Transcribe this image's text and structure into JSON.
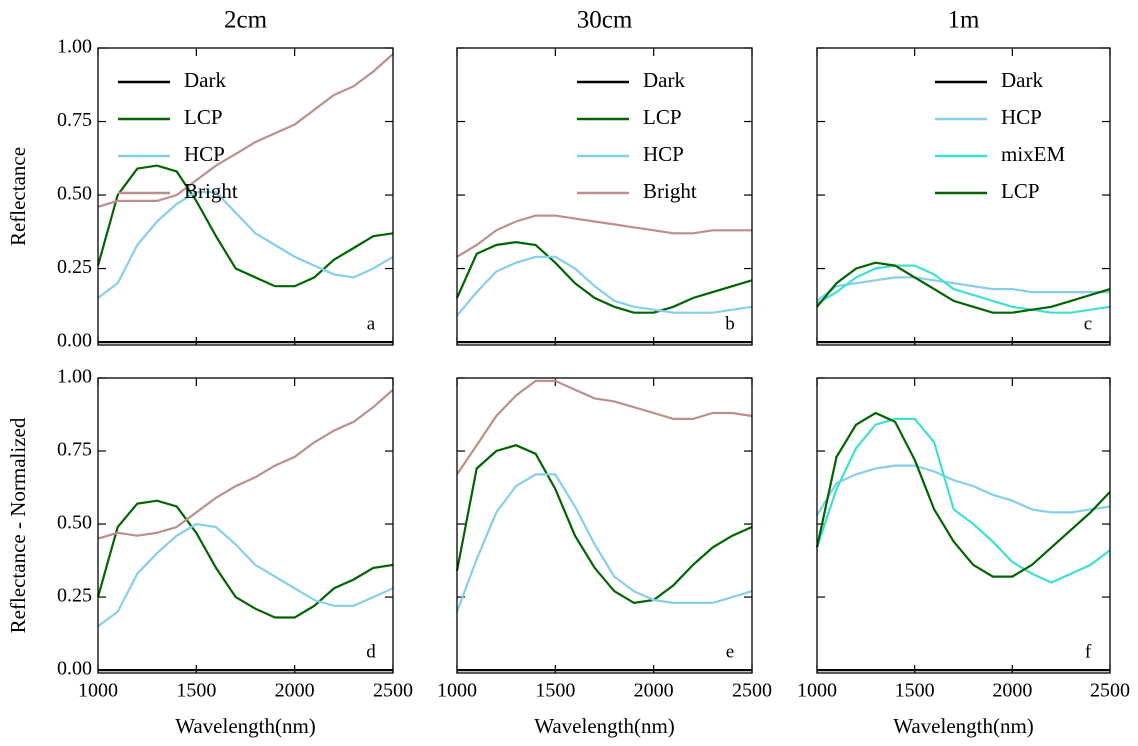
{
  "chart_data": [
    {
      "type": "line",
      "title": "2cm",
      "ylabel": "Reflectance",
      "annotation": "a",
      "x": [
        1000,
        1100,
        1200,
        1300,
        1400,
        1500,
        1600,
        1700,
        1800,
        1900,
        2000,
        2100,
        2200,
        2300,
        2400,
        2500
      ],
      "xlim": [
        1000,
        2500
      ],
      "xticks": [
        1000,
        1500,
        2000,
        2500
      ],
      "xtick_labels": false,
      "ylim": [
        -0.01,
        1.0
      ],
      "yticks": [
        {
          "value": 0,
          "label": "0.00"
        },
        {
          "value": 0.25,
          "label": "0.25"
        },
        {
          "value": 0.5,
          "label": "0.50"
        },
        {
          "value": 0.75,
          "label": "0.75"
        },
        {
          "value": 1,
          "label": "1.00"
        }
      ],
      "ytick_labels": true,
      "legend": true,
      "legend_loc": "upper left",
      "series": [
        {
          "name": "Dark",
          "color": "#000000",
          "values": [
            0,
            0,
            0,
            0,
            0,
            0,
            0,
            0,
            0,
            0,
            0,
            0,
            0,
            0,
            0,
            0
          ]
        },
        {
          "name": "LCP",
          "color": "#006400",
          "values": [
            0.26,
            0.5,
            0.59,
            0.6,
            0.58,
            0.48,
            0.36,
            0.25,
            0.22,
            0.19,
            0.19,
            0.22,
            0.28,
            0.32,
            0.36,
            0.37
          ]
        },
        {
          "name": "HCP",
          "color": "#87ceeb",
          "values": [
            0.15,
            0.2,
            0.33,
            0.41,
            0.47,
            0.51,
            0.51,
            0.44,
            0.37,
            0.33,
            0.29,
            0.26,
            0.23,
            0.22,
            0.25,
            0.29
          ]
        },
        {
          "name": "Bright",
          "color": "#bc8f8f",
          "values": [
            0.46,
            0.48,
            0.48,
            0.48,
            0.5,
            0.55,
            0.6,
            0.64,
            0.68,
            0.71,
            0.74,
            0.79,
            0.84,
            0.87,
            0.92,
            0.98
          ]
        }
      ]
    },
    {
      "type": "line",
      "title": "30cm",
      "annotation": "b",
      "x": [
        1000,
        1100,
        1200,
        1300,
        1400,
        1500,
        1600,
        1700,
        1800,
        1900,
        2000,
        2100,
        2200,
        2300,
        2400,
        2500
      ],
      "xlim": [
        1000,
        2500
      ],
      "xticks": [
        1000,
        1500,
        2000,
        2500
      ],
      "xtick_labels": false,
      "ylim": [
        -0.01,
        1.0
      ],
      "yticks": [
        0,
        0.25,
        0.5,
        0.75,
        1
      ],
      "ytick_labels": false,
      "legend": true,
      "legend_loc": "upper right",
      "series": [
        {
          "name": "Dark",
          "color": "#000000",
          "values": [
            0,
            0,
            0,
            0,
            0,
            0,
            0,
            0,
            0,
            0,
            0,
            0,
            0,
            0,
            0,
            0
          ]
        },
        {
          "name": "LCP",
          "color": "#006400",
          "values": [
            0.15,
            0.3,
            0.33,
            0.34,
            0.33,
            0.27,
            0.2,
            0.15,
            0.12,
            0.1,
            0.1,
            0.12,
            0.15,
            0.17,
            0.19,
            0.21
          ]
        },
        {
          "name": "HCP",
          "color": "#87ceeb",
          "values": [
            0.09,
            0.17,
            0.24,
            0.27,
            0.29,
            0.29,
            0.25,
            0.19,
            0.14,
            0.12,
            0.11,
            0.1,
            0.1,
            0.1,
            0.11,
            0.12
          ]
        },
        {
          "name": "Bright",
          "color": "#bc8f8f",
          "values": [
            0.29,
            0.33,
            0.38,
            0.41,
            0.43,
            0.43,
            0.42,
            0.41,
            0.4,
            0.39,
            0.38,
            0.37,
            0.37,
            0.38,
            0.38,
            0.38
          ]
        }
      ]
    },
    {
      "type": "line",
      "title": "1m",
      "annotation": "c",
      "x": [
        1000,
        1100,
        1200,
        1300,
        1400,
        1500,
        1600,
        1700,
        1800,
        1900,
        2000,
        2100,
        2200,
        2300,
        2400,
        2500
      ],
      "xlim": [
        1000,
        2500
      ],
      "xticks": [
        1000,
        1500,
        2000,
        2500
      ],
      "xtick_labels": false,
      "ylim": [
        -0.01,
        1.0
      ],
      "yticks": [
        0,
        0.25,
        0.5,
        0.75,
        1
      ],
      "ytick_labels": false,
      "legend": true,
      "legend_loc": "upper right",
      "series": [
        {
          "name": "Dark",
          "color": "#000000",
          "values": [
            0,
            0,
            0,
            0,
            0,
            0,
            0,
            0,
            0,
            0,
            0,
            0,
            0,
            0,
            0,
            0
          ]
        },
        {
          "name": "HCP",
          "color": "#87ceeb",
          "values": [
            0.14,
            0.19,
            0.2,
            0.21,
            0.22,
            0.22,
            0.21,
            0.2,
            0.19,
            0.18,
            0.18,
            0.17,
            0.17,
            0.17,
            0.17,
            0.17
          ]
        },
        {
          "name": "mixEM",
          "color": "#40e0d0",
          "values": [
            0.13,
            0.17,
            0.22,
            0.25,
            0.26,
            0.26,
            0.23,
            0.18,
            0.16,
            0.14,
            0.12,
            0.11,
            0.1,
            0.1,
            0.11,
            0.12
          ]
        },
        {
          "name": "LCP",
          "color": "#006400",
          "values": [
            0.12,
            0.2,
            0.25,
            0.27,
            0.26,
            0.22,
            0.18,
            0.14,
            0.12,
            0.1,
            0.1,
            0.11,
            0.12,
            0.14,
            0.16,
            0.18
          ]
        }
      ]
    },
    {
      "type": "line",
      "ylabel": "Reflectance - Normalized",
      "xlabel": "Wavelength(nm)",
      "annotation": "d",
      "x": [
        1000,
        1100,
        1200,
        1300,
        1400,
        1500,
        1600,
        1700,
        1800,
        1900,
        2000,
        2100,
        2200,
        2300,
        2400,
        2500
      ],
      "xlim": [
        1000,
        2500
      ],
      "xticks": [
        1000,
        1500,
        2000,
        2500
      ],
      "xtick_labels": true,
      "ylim": [
        -0.01,
        1.0
      ],
      "yticks": [
        {
          "value": 0,
          "label": "0.00"
        },
        {
          "value": 0.25,
          "label": "0.25"
        },
        {
          "value": 0.5,
          "label": "0.50"
        },
        {
          "value": 0.75,
          "label": "0.75"
        },
        {
          "value": 1,
          "label": "1.00"
        }
      ],
      "ytick_labels": true,
      "legend": false,
      "series": [
        {
          "name": "Dark",
          "color": "#000000",
          "values": [
            0,
            0,
            0,
            0,
            0,
            0,
            0,
            0,
            0,
            0,
            0,
            0,
            0,
            0,
            0,
            0
          ]
        },
        {
          "name": "LCP",
          "color": "#006400",
          "values": [
            0.25,
            0.49,
            0.57,
            0.58,
            0.56,
            0.47,
            0.35,
            0.25,
            0.21,
            0.18,
            0.18,
            0.22,
            0.28,
            0.31,
            0.35,
            0.36
          ]
        },
        {
          "name": "HCP",
          "color": "#87ceeb",
          "values": [
            0.15,
            0.2,
            0.33,
            0.4,
            0.46,
            0.5,
            0.49,
            0.43,
            0.36,
            0.32,
            0.28,
            0.24,
            0.22,
            0.22,
            0.25,
            0.28
          ]
        },
        {
          "name": "Bright",
          "color": "#bc8f8f",
          "values": [
            0.45,
            0.47,
            0.46,
            0.47,
            0.49,
            0.54,
            0.59,
            0.63,
            0.66,
            0.7,
            0.73,
            0.78,
            0.82,
            0.85,
            0.9,
            0.96
          ]
        }
      ]
    },
    {
      "type": "line",
      "xlabel": "Wavelength(nm)",
      "annotation": "e",
      "x": [
        1000,
        1100,
        1200,
        1300,
        1400,
        1500,
        1600,
        1700,
        1800,
        1900,
        2000,
        2100,
        2200,
        2300,
        2400,
        2500
      ],
      "xlim": [
        1000,
        2500
      ],
      "xticks": [
        1000,
        1500,
        2000,
        2500
      ],
      "xtick_labels": true,
      "ylim": [
        -0.01,
        1.0
      ],
      "yticks": [
        0,
        0.25,
        0.5,
        0.75,
        1
      ],
      "ytick_labels": false,
      "legend": false,
      "series": [
        {
          "name": "Dark",
          "color": "#000000",
          "values": [
            0,
            0,
            0,
            0,
            0,
            0,
            0,
            0,
            0,
            0,
            0,
            0,
            0,
            0,
            0,
            0
          ]
        },
        {
          "name": "LCP",
          "color": "#006400",
          "values": [
            0.34,
            0.69,
            0.75,
            0.77,
            0.74,
            0.62,
            0.46,
            0.35,
            0.27,
            0.23,
            0.24,
            0.29,
            0.36,
            0.42,
            0.46,
            0.49
          ]
        },
        {
          "name": "HCP",
          "color": "#87ceeb",
          "values": [
            0.2,
            0.38,
            0.54,
            0.63,
            0.67,
            0.67,
            0.56,
            0.43,
            0.32,
            0.27,
            0.24,
            0.23,
            0.23,
            0.23,
            0.25,
            0.27
          ]
        },
        {
          "name": "Bright",
          "color": "#bc8f8f",
          "values": [
            0.67,
            0.77,
            0.87,
            0.94,
            0.99,
            0.99,
            0.96,
            0.93,
            0.92,
            0.9,
            0.88,
            0.86,
            0.86,
            0.88,
            0.88,
            0.87
          ]
        }
      ]
    },
    {
      "type": "line",
      "xlabel": "Wavelength(nm)",
      "annotation": "f",
      "x": [
        1000,
        1100,
        1200,
        1300,
        1400,
        1500,
        1600,
        1700,
        1800,
        1900,
        2000,
        2100,
        2200,
        2300,
        2400,
        2500
      ],
      "xlim": [
        1000,
        2500
      ],
      "xticks": [
        1000,
        1500,
        2000,
        2500
      ],
      "xtick_labels": true,
      "ylim": [
        -0.01,
        1.0
      ],
      "yticks": [
        0,
        0.25,
        0.5,
        0.75,
        1
      ],
      "ytick_labels": false,
      "legend": false,
      "series": [
        {
          "name": "Dark",
          "color": "#000000",
          "values": [
            0,
            0,
            0,
            0,
            0,
            0,
            0,
            0,
            0,
            0,
            0,
            0,
            0,
            0,
            0,
            0
          ]
        },
        {
          "name": "HCP",
          "color": "#87ceeb",
          "values": [
            0.53,
            0.64,
            0.67,
            0.69,
            0.7,
            0.7,
            0.68,
            0.65,
            0.63,
            0.6,
            0.58,
            0.55,
            0.54,
            0.54,
            0.55,
            0.56
          ]
        },
        {
          "name": "mixEM",
          "color": "#40e0d0",
          "values": [
            0.42,
            0.62,
            0.76,
            0.84,
            0.86,
            0.86,
            0.78,
            0.55,
            0.5,
            0.44,
            0.37,
            0.33,
            0.3,
            0.33,
            0.36,
            0.41
          ]
        },
        {
          "name": "LCP",
          "color": "#006400",
          "values": [
            0.42,
            0.73,
            0.84,
            0.88,
            0.85,
            0.72,
            0.55,
            0.44,
            0.36,
            0.32,
            0.32,
            0.36,
            0.42,
            0.48,
            0.54,
            0.61
          ]
        }
      ]
    }
  ]
}
